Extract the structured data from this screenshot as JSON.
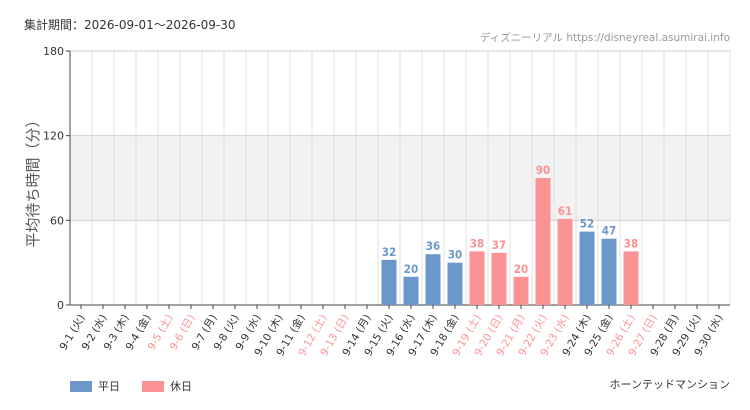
{
  "header": {
    "period": "集計期間：2026-09-01～2026-09-30",
    "source": "ディズニーリアル https://disneyreal.asumirai.info"
  },
  "facility": "ホーンテッドマンション",
  "legend": {
    "weekday": "平日",
    "holiday": "休日"
  },
  "colors": {
    "weekday": "#6b98c8",
    "holiday": "#fb9294",
    "band": "#f2f2f2",
    "grid": "#e2e2e2"
  },
  "chart_data": {
    "type": "bar",
    "ylabel": "平均待ち時間（分）",
    "ylim": [
      0,
      180
    ],
    "yticks": [
      0,
      60,
      120,
      180
    ],
    "shaded_band": [
      60,
      120
    ],
    "categories": [
      "9-1 (火)",
      "9-2 (水)",
      "9-3 (木)",
      "9-4 (金)",
      "9-5 (土)",
      "9-6 (日)",
      "9-7 (月)",
      "9-8 (火)",
      "9-9 (水)",
      "9-10 (木)",
      "9-11 (金)",
      "9-12 (土)",
      "9-13 (日)",
      "9-14 (月)",
      "9-15 (火)",
      "9-16 (水)",
      "9-17 (木)",
      "9-18 (金)",
      "9-19 (土)",
      "9-20 (日)",
      "9-21 (月)",
      "9-22 (火)",
      "9-23 (水)",
      "9-24 (木)",
      "9-25 (金)",
      "9-26 (土)",
      "9-27 (日)",
      "9-28 (月)",
      "9-29 (火)",
      "9-30 (水)"
    ],
    "day_type": [
      "weekday",
      "weekday",
      "weekday",
      "weekday",
      "holiday",
      "holiday",
      "weekday",
      "weekday",
      "weekday",
      "weekday",
      "weekday",
      "holiday",
      "holiday",
      "weekday",
      "weekday",
      "weekday",
      "weekday",
      "weekday",
      "holiday",
      "holiday",
      "holiday",
      "holiday",
      "holiday",
      "weekday",
      "weekday",
      "holiday",
      "holiday",
      "weekday",
      "weekday",
      "weekday"
    ],
    "series": [
      {
        "name": "平均待ち時間",
        "values": [
          null,
          null,
          null,
          null,
          null,
          null,
          null,
          null,
          null,
          null,
          null,
          null,
          null,
          null,
          32,
          20,
          36,
          30,
          38,
          37,
          20,
          90,
          61,
          52,
          47,
          38,
          null,
          null,
          null,
          null
        ]
      }
    ]
  }
}
